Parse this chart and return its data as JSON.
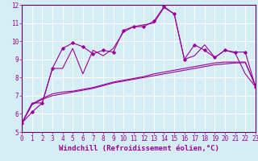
{
  "background_color": "#d5eef5",
  "grid_color": "#ffffff",
  "line_color": "#990099",
  "spine_color": "#660066",
  "x_min": 0,
  "x_max": 23,
  "y_min": 5,
  "y_max": 12,
  "xlabel": "Windchill (Refroidissement éolien,°C)",
  "xlabel_fontsize": 6.5,
  "tick_fontsize": 5.5,
  "series1_x": [
    0,
    1,
    2,
    3,
    4,
    5,
    6,
    7,
    8,
    9,
    10,
    11,
    12,
    13,
    14,
    15,
    16,
    17,
    18,
    19,
    20,
    21,
    22,
    23
  ],
  "series1_y": [
    5.5,
    6.1,
    6.6,
    8.5,
    9.6,
    9.9,
    9.7,
    9.3,
    9.5,
    9.4,
    10.6,
    10.8,
    10.8,
    11.1,
    11.9,
    11.5,
    9.0,
    9.8,
    9.5,
    9.1,
    9.5,
    9.4,
    9.4,
    7.5
  ],
  "series1_markers": true,
  "series2_x": [
    0,
    1,
    2,
    3,
    4,
    5,
    6,
    7,
    8,
    9,
    10,
    11,
    12,
    13,
    14,
    15,
    16,
    17,
    18,
    19,
    20,
    21,
    22,
    23
  ],
  "series2_y": [
    5.5,
    6.6,
    6.6,
    8.5,
    8.5,
    9.6,
    8.2,
    9.5,
    9.2,
    9.6,
    10.5,
    10.8,
    10.9,
    11.0,
    11.85,
    11.5,
    9.0,
    9.2,
    9.8,
    9.1,
    9.5,
    9.35,
    8.2,
    7.5
  ],
  "series2_markers": false,
  "series3_x": [
    0,
    1,
    2,
    3,
    4,
    5,
    6,
    7,
    8,
    9,
    10,
    11,
    12,
    13,
    14,
    15,
    16,
    17,
    18,
    19,
    20,
    21,
    22,
    23
  ],
  "series3_y": [
    5.5,
    6.55,
    6.85,
    7.1,
    7.2,
    7.25,
    7.35,
    7.45,
    7.6,
    7.75,
    7.85,
    7.95,
    8.05,
    8.2,
    8.3,
    8.4,
    8.5,
    8.6,
    8.7,
    8.8,
    8.85,
    8.85,
    8.85,
    7.55
  ],
  "series3_markers": false,
  "series4_x": [
    0,
    1,
    2,
    3,
    4,
    5,
    6,
    7,
    8,
    9,
    10,
    11,
    12,
    13,
    14,
    15,
    16,
    17,
    18,
    19,
    20,
    21,
    22,
    23
  ],
  "series4_y": [
    5.5,
    6.5,
    6.8,
    7.0,
    7.1,
    7.2,
    7.3,
    7.4,
    7.55,
    7.7,
    7.8,
    7.9,
    8.0,
    8.1,
    8.2,
    8.3,
    8.4,
    8.5,
    8.6,
    8.7,
    8.75,
    8.8,
    8.82,
    7.55
  ],
  "series4_markers": false,
  "ytick_labels": [
    "5",
    "6",
    "7",
    "8",
    "9",
    "10",
    "11",
    "12"
  ],
  "xtick_labels": [
    "0",
    "1",
    "2",
    "3",
    "4",
    "5",
    "6",
    "7",
    "8",
    "9",
    "10",
    "11",
    "12",
    "13",
    "14",
    "15",
    "16",
    "17",
    "18",
    "19",
    "20",
    "21",
    "22",
    "23"
  ]
}
